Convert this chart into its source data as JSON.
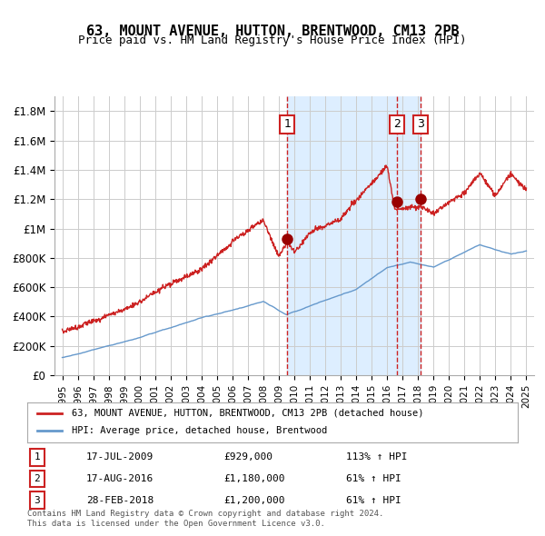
{
  "title": "63, MOUNT AVENUE, HUTTON, BRENTWOOD, CM13 2PB",
  "subtitle": "Price paid vs. HM Land Registry's House Price Index (HPI)",
  "legend_line1": "63, MOUNT AVENUE, HUTTON, BRENTWOOD, CM13 2PB (detached house)",
  "legend_line2": "HPI: Average price, detached house, Brentwood",
  "footnote1": "Contains HM Land Registry data © Crown copyright and database right 2024.",
  "footnote2": "This data is licensed under the Open Government Licence v3.0.",
  "sales": [
    {
      "label": "1",
      "date": "17-JUL-2009",
      "price": 929000,
      "hpi_pct": "113% ↑ HPI",
      "x_year": 2009.54
    },
    {
      "label": "2",
      "date": "17-AUG-2016",
      "price": 1180000,
      "hpi_pct": "61% ↑ HPI",
      "x_year": 2016.63
    },
    {
      "label": "3",
      "date": "28-FEB-2018",
      "price": 1200000,
      "hpi_pct": "61% ↑ HPI",
      "x_year": 2018.16
    }
  ],
  "hpi_line_color": "#6699cc",
  "price_line_color": "#cc2222",
  "sale_dot_color": "#990000",
  "vline_color_1": "#cc2222",
  "vline_color_23": "#cc2222",
  "shaded_region_color": "#ddeeff",
  "background_color": "#ffffff",
  "grid_color": "#cccccc",
  "ylim": [
    0,
    1900000
  ],
  "xlim_start": 1994.5,
  "xlim_end": 2025.5,
  "yticks": [
    0,
    200000,
    400000,
    600000,
    800000,
    1000000,
    1200000,
    1400000,
    1600000,
    1800000
  ],
  "ytick_labels": [
    "£0",
    "£200K",
    "£400K",
    "£600K",
    "£800K",
    "£1M",
    "£1.2M",
    "£1.4M",
    "£1.6M",
    "£1.8M"
  ],
  "xticks": [
    1995,
    1996,
    1997,
    1998,
    1999,
    2000,
    2001,
    2002,
    2003,
    2004,
    2005,
    2006,
    2007,
    2008,
    2009,
    2010,
    2011,
    2012,
    2013,
    2014,
    2015,
    2016,
    2017,
    2018,
    2019,
    2020,
    2021,
    2022,
    2023,
    2024,
    2025
  ]
}
